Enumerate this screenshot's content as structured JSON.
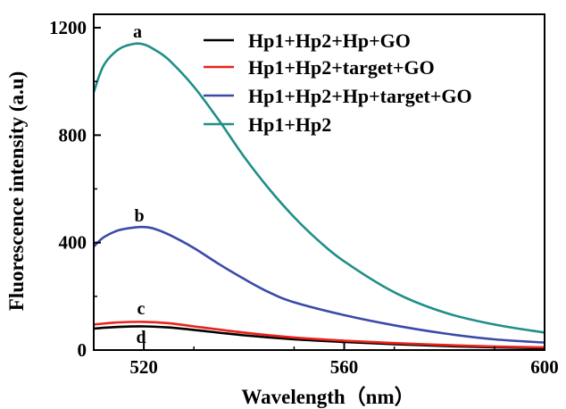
{
  "chart_data": {
    "type": "line",
    "xlabel": "Wavelength（nm）",
    "ylabel": "Fluorescence intensity (a.u)",
    "xlim": [
      510,
      600
    ],
    "ylim": [
      0,
      1250
    ],
    "xticks": [
      {
        "value": 520,
        "label": "520"
      },
      {
        "value": 560,
        "label": "560"
      },
      {
        "value": 600,
        "label": "600"
      }
    ],
    "yticks": [
      {
        "value": 0,
        "label": "0"
      },
      {
        "value": 400,
        "label": "400"
      },
      {
        "value": 800,
        "label": "800"
      },
      {
        "value": 1200,
        "label": "1200"
      }
    ],
    "grid": false,
    "legend_position": "top-right",
    "series": [
      {
        "name": "Hp1+Hp2+Hp+GO",
        "color": "#000000",
        "curve_label": "d",
        "x": [
          510,
          515,
          520,
          525,
          530,
          540,
          550,
          560,
          570,
          580,
          590,
          600
        ],
        "y": [
          80,
          86,
          88,
          84,
          75,
          55,
          40,
          30,
          22,
          15,
          10,
          7
        ]
      },
      {
        "name": "Hp1+Hp2+target+GO",
        "color": "#e8231d",
        "curve_label": "c",
        "x": [
          510,
          515,
          520,
          525,
          530,
          540,
          550,
          560,
          570,
          580,
          590,
          600
        ],
        "y": [
          95,
          103,
          105,
          100,
          88,
          65,
          47,
          35,
          26,
          19,
          13,
          10
        ]
      },
      {
        "name": "Hp1+Hp2+Hp+target+GO",
        "color": "#3a4aa8",
        "curve_label": "b",
        "x": [
          510,
          512,
          515,
          518,
          520,
          522,
          525,
          530,
          535,
          540,
          545,
          550,
          560,
          570,
          580,
          590,
          600
        ],
        "y": [
          385,
          420,
          446,
          456,
          458,
          452,
          430,
          380,
          320,
          265,
          215,
          178,
          130,
          92,
          62,
          40,
          28
        ]
      },
      {
        "name": "Hp1+Hp2",
        "color": "#1f8f88",
        "curve_label": "a",
        "x": [
          510,
          512,
          515,
          518,
          520,
          522,
          525,
          530,
          535,
          540,
          545,
          550,
          555,
          560,
          570,
          580,
          590,
          600
        ],
        "y": [
          960,
          1060,
          1120,
          1140,
          1138,
          1120,
          1080,
          980,
          855,
          720,
          600,
          495,
          405,
          330,
          215,
          140,
          95,
          65
        ]
      }
    ]
  }
}
